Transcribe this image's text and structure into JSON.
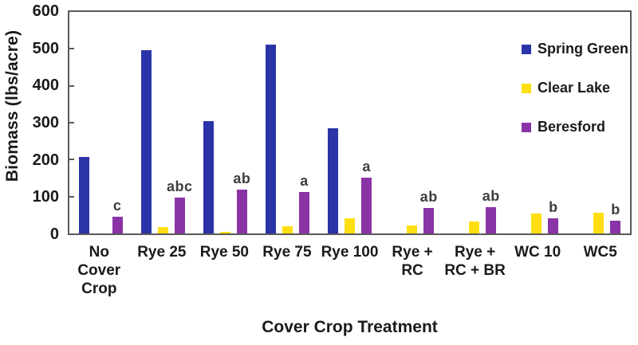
{
  "chart_data": {
    "type": "bar",
    "title": "",
    "xlabel": "Cover Crop Treatment",
    "ylabel": "Biomass (lbs/acre)",
    "ylim": [
      0,
      600
    ],
    "yticks": [
      0,
      100,
      200,
      300,
      400,
      500,
      600
    ],
    "grid": false,
    "legend_position": "top-right-inside",
    "categories": [
      "No\nCover\nCrop",
      "Rye 25",
      "Rye 50",
      "Rye 75",
      "Rye 100",
      "Rye +\nRC",
      "Rye +\nRC + BR",
      "WC 10",
      "WC5"
    ],
    "series": [
      {
        "name": "Spring Green",
        "color": "#2B34A6",
        "values": [
          207,
          496,
          305,
          511,
          285,
          0,
          0,
          0,
          0
        ]
      },
      {
        "name": "Clear Lake",
        "color": "#FFDF12",
        "values": [
          0,
          18,
          5,
          20,
          42,
          22,
          33,
          55,
          57
        ]
      },
      {
        "name": "Beresford",
        "color": "#8A33A7",
        "values": [
          45,
          97,
          118,
          112,
          152,
          69,
          72,
          42,
          35
        ]
      }
    ],
    "significance_letters": [
      "c",
      "abc",
      "ab",
      "a",
      "a",
      "ab",
      "ab",
      "b",
      "b"
    ]
  },
  "colors": {
    "axis_frame": "#595959",
    "text": "#1a1a1a",
    "letters": "#3d3d3d",
    "background": "#ffffff"
  }
}
